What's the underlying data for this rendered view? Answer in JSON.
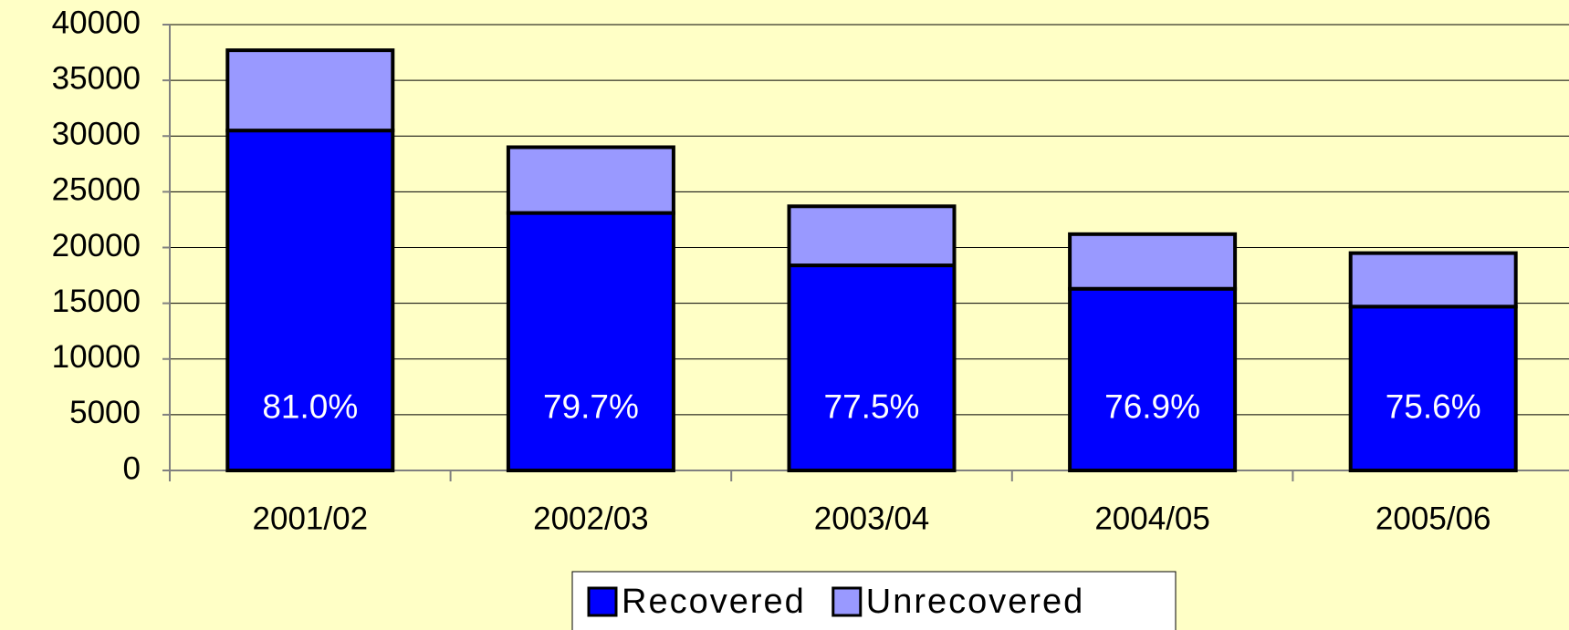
{
  "chart_data": {
    "type": "stacked_bar",
    "categories": [
      "2001/02",
      "2002/03",
      "2003/04",
      "2004/05",
      "2005/06"
    ],
    "series": [
      {
        "name": "Recovered",
        "color": "#0000ff",
        "values": [
          30500,
          23100,
          18400,
          16300,
          14700
        ]
      },
      {
        "name": "Unrecovered",
        "color": "#9999ff",
        "values": [
          7200,
          5900,
          5300,
          4900,
          4800
        ]
      }
    ],
    "annotations": [
      "81.0%",
      "79.7%",
      "77.5%",
      "76.9%",
      "75.6%"
    ],
    "ylim": [
      0,
      40000
    ],
    "yticks": [
      0,
      5000,
      10000,
      15000,
      20000,
      25000,
      30000,
      35000,
      40000
    ],
    "grid": true,
    "legend": "bottom"
  }
}
